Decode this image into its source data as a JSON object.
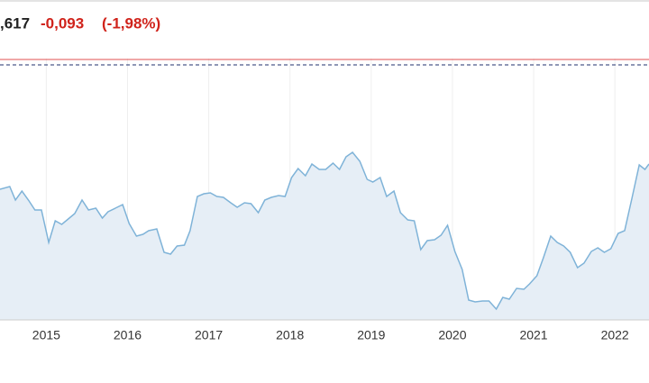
{
  "chart_data": {
    "type": "area",
    "header": {
      "price": ",617",
      "change": "-0,093",
      "change_pct": "(-1,98%)"
    },
    "x": [
      2014.43,
      2014.55,
      2014.62,
      2014.7,
      2014.78,
      2014.86,
      2014.94,
      2015.03,
      2015.11,
      2015.19,
      2015.27,
      2015.35,
      2015.44,
      2015.52,
      2015.61,
      2015.69,
      2015.76,
      2015.85,
      2015.94,
      2016.02,
      2016.11,
      2016.19,
      2016.26,
      2016.36,
      2016.45,
      2016.53,
      2016.61,
      2016.7,
      2016.77,
      2016.86,
      2016.94,
      2017.02,
      2017.1,
      2017.18,
      2017.27,
      2017.35,
      2017.44,
      2017.52,
      2017.61,
      2017.69,
      2017.77,
      2017.86,
      2017.94,
      2018.02,
      2018.1,
      2018.19,
      2018.27,
      2018.36,
      2018.44,
      2018.53,
      2018.61,
      2018.69,
      2018.77,
      2018.86,
      2018.95,
      2019.02,
      2019.11,
      2019.19,
      2019.28,
      2019.36,
      2019.45,
      2019.53,
      2019.61,
      2019.69,
      2019.78,
      2019.86,
      2019.94,
      2020.03,
      2020.12,
      2020.2,
      2020.28,
      2020.37,
      2020.45,
      2020.54,
      2020.62,
      2020.7,
      2020.79,
      2020.88,
      2020.95,
      2021.04,
      2021.12,
      2021.21,
      2021.29,
      2021.37,
      2021.45,
      2021.54,
      2021.62,
      2021.71,
      2021.79,
      2021.87,
      2021.95,
      2022.04,
      2022.12,
      2022.21,
      2022.3,
      2022.37,
      2022.42
    ],
    "values": [
      145,
      148,
      133,
      143,
      133,
      122,
      122,
      86,
      110,
      106,
      112,
      118,
      133,
      122,
      124,
      113,
      120,
      124,
      128,
      107,
      93,
      95,
      99,
      101,
      75,
      73,
      82,
      83,
      99,
      137,
      140,
      141,
      137,
      136,
      130,
      125,
      130,
      129,
      119,
      133,
      136,
      138,
      137,
      158,
      168,
      160,
      173,
      167,
      167,
      174,
      167,
      181,
      186,
      176,
      156,
      153,
      158,
      137,
      143,
      119,
      111,
      110,
      78,
      88,
      89,
      94,
      105,
      76,
      56,
      22,
      20,
      21,
      21,
      12,
      25,
      23,
      35,
      34,
      40,
      49,
      69,
      93,
      86,
      82,
      75,
      58,
      63,
      76,
      80,
      75,
      79,
      96,
      99,
      135,
      172,
      167,
      173
    ],
    "line_color": "#7fb3d8",
    "fill_color": "#e6eef6",
    "xlim": [
      2014.43,
      2022.42
    ],
    "xticks": [
      2015,
      2016,
      2017,
      2018,
      2019,
      2020,
      2021,
      2022
    ],
    "ylim": [
      0,
      290
    ],
    "grid": true,
    "reference_lines": [
      {
        "value": 289,
        "color": "#e05050",
        "style": "solid"
      },
      {
        "value": 283,
        "color": "#1f2f6e",
        "style": "dashed"
      }
    ]
  }
}
